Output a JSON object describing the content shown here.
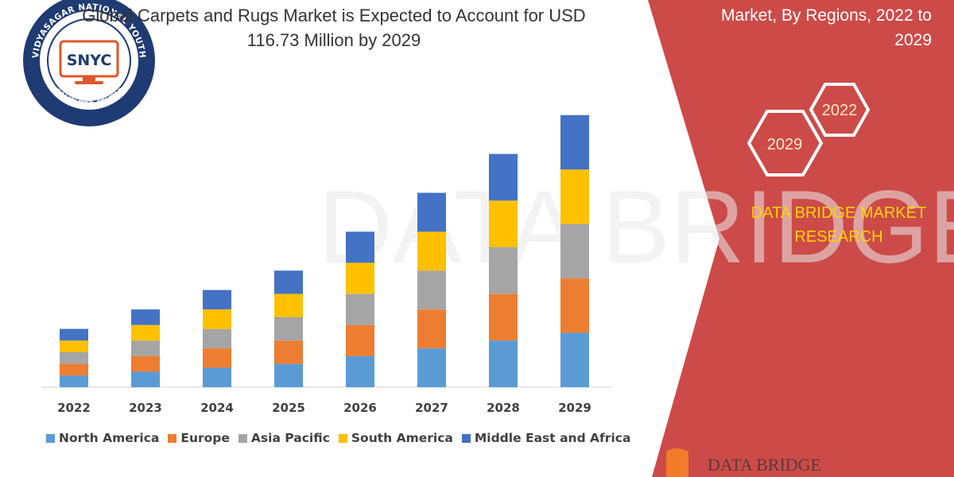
{
  "header": {
    "title_line1": "Global Carpets and Rugs Market is Expected to Account for USD",
    "title_line2": "116.73 Million by 2029",
    "subtitle_line1": "Market, By Regions, 2022 to",
    "subtitle_line2": "2029"
  },
  "badges": {
    "hex_back": "2029",
    "hex_front": "2022"
  },
  "brand": {
    "line1": "DATA BRIDGE MARKET",
    "line2": "RESEARCH"
  },
  "logo": {
    "ring_text": "VIDYASAGAR NATIONAL YOUTH",
    "bottom_text": "COMPUTER CENTRE",
    "mark_text": "SNYC"
  },
  "watermark": {
    "text": "DATA BRIDGE"
  },
  "colors": {
    "red_panel": "#cc4b49",
    "accent_yellow": "#ffd400",
    "north_america": "#5b9bd5",
    "europe": "#ed7d31",
    "asia_pacific": "#a5a5a5",
    "south_america": "#ffc000",
    "middle_east_africa": "#4472c4"
  },
  "chart_data": {
    "type": "bar",
    "stacked": true,
    "categories": [
      "2022",
      "2023",
      "2024",
      "2025",
      "2026",
      "2027",
      "2028",
      "2029"
    ],
    "series": [
      {
        "name": "North America",
        "color": "#5b9bd5",
        "values": [
          15,
          20,
          25,
          30,
          40,
          50,
          60,
          70
        ]
      },
      {
        "name": "Europe",
        "color": "#ed7d31",
        "values": [
          15,
          20,
          25,
          30,
          40,
          50,
          60,
          70
        ]
      },
      {
        "name": "Asia Pacific",
        "color": "#a5a5a5",
        "values": [
          15,
          20,
          25,
          30,
          40,
          50,
          60,
          70
        ]
      },
      {
        "name": "South America",
        "color": "#ffc000",
        "values": [
          15,
          20,
          25,
          30,
          40,
          50,
          60,
          70
        ]
      },
      {
        "name": "Middle East and Africa",
        "color": "#4472c4",
        "values": [
          15,
          20,
          25,
          30,
          40,
          50,
          60,
          70
        ]
      }
    ],
    "ylim": [
      0,
      360
    ],
    "grid": false,
    "legend": "bottom",
    "xlabel": "",
    "ylabel": ""
  }
}
